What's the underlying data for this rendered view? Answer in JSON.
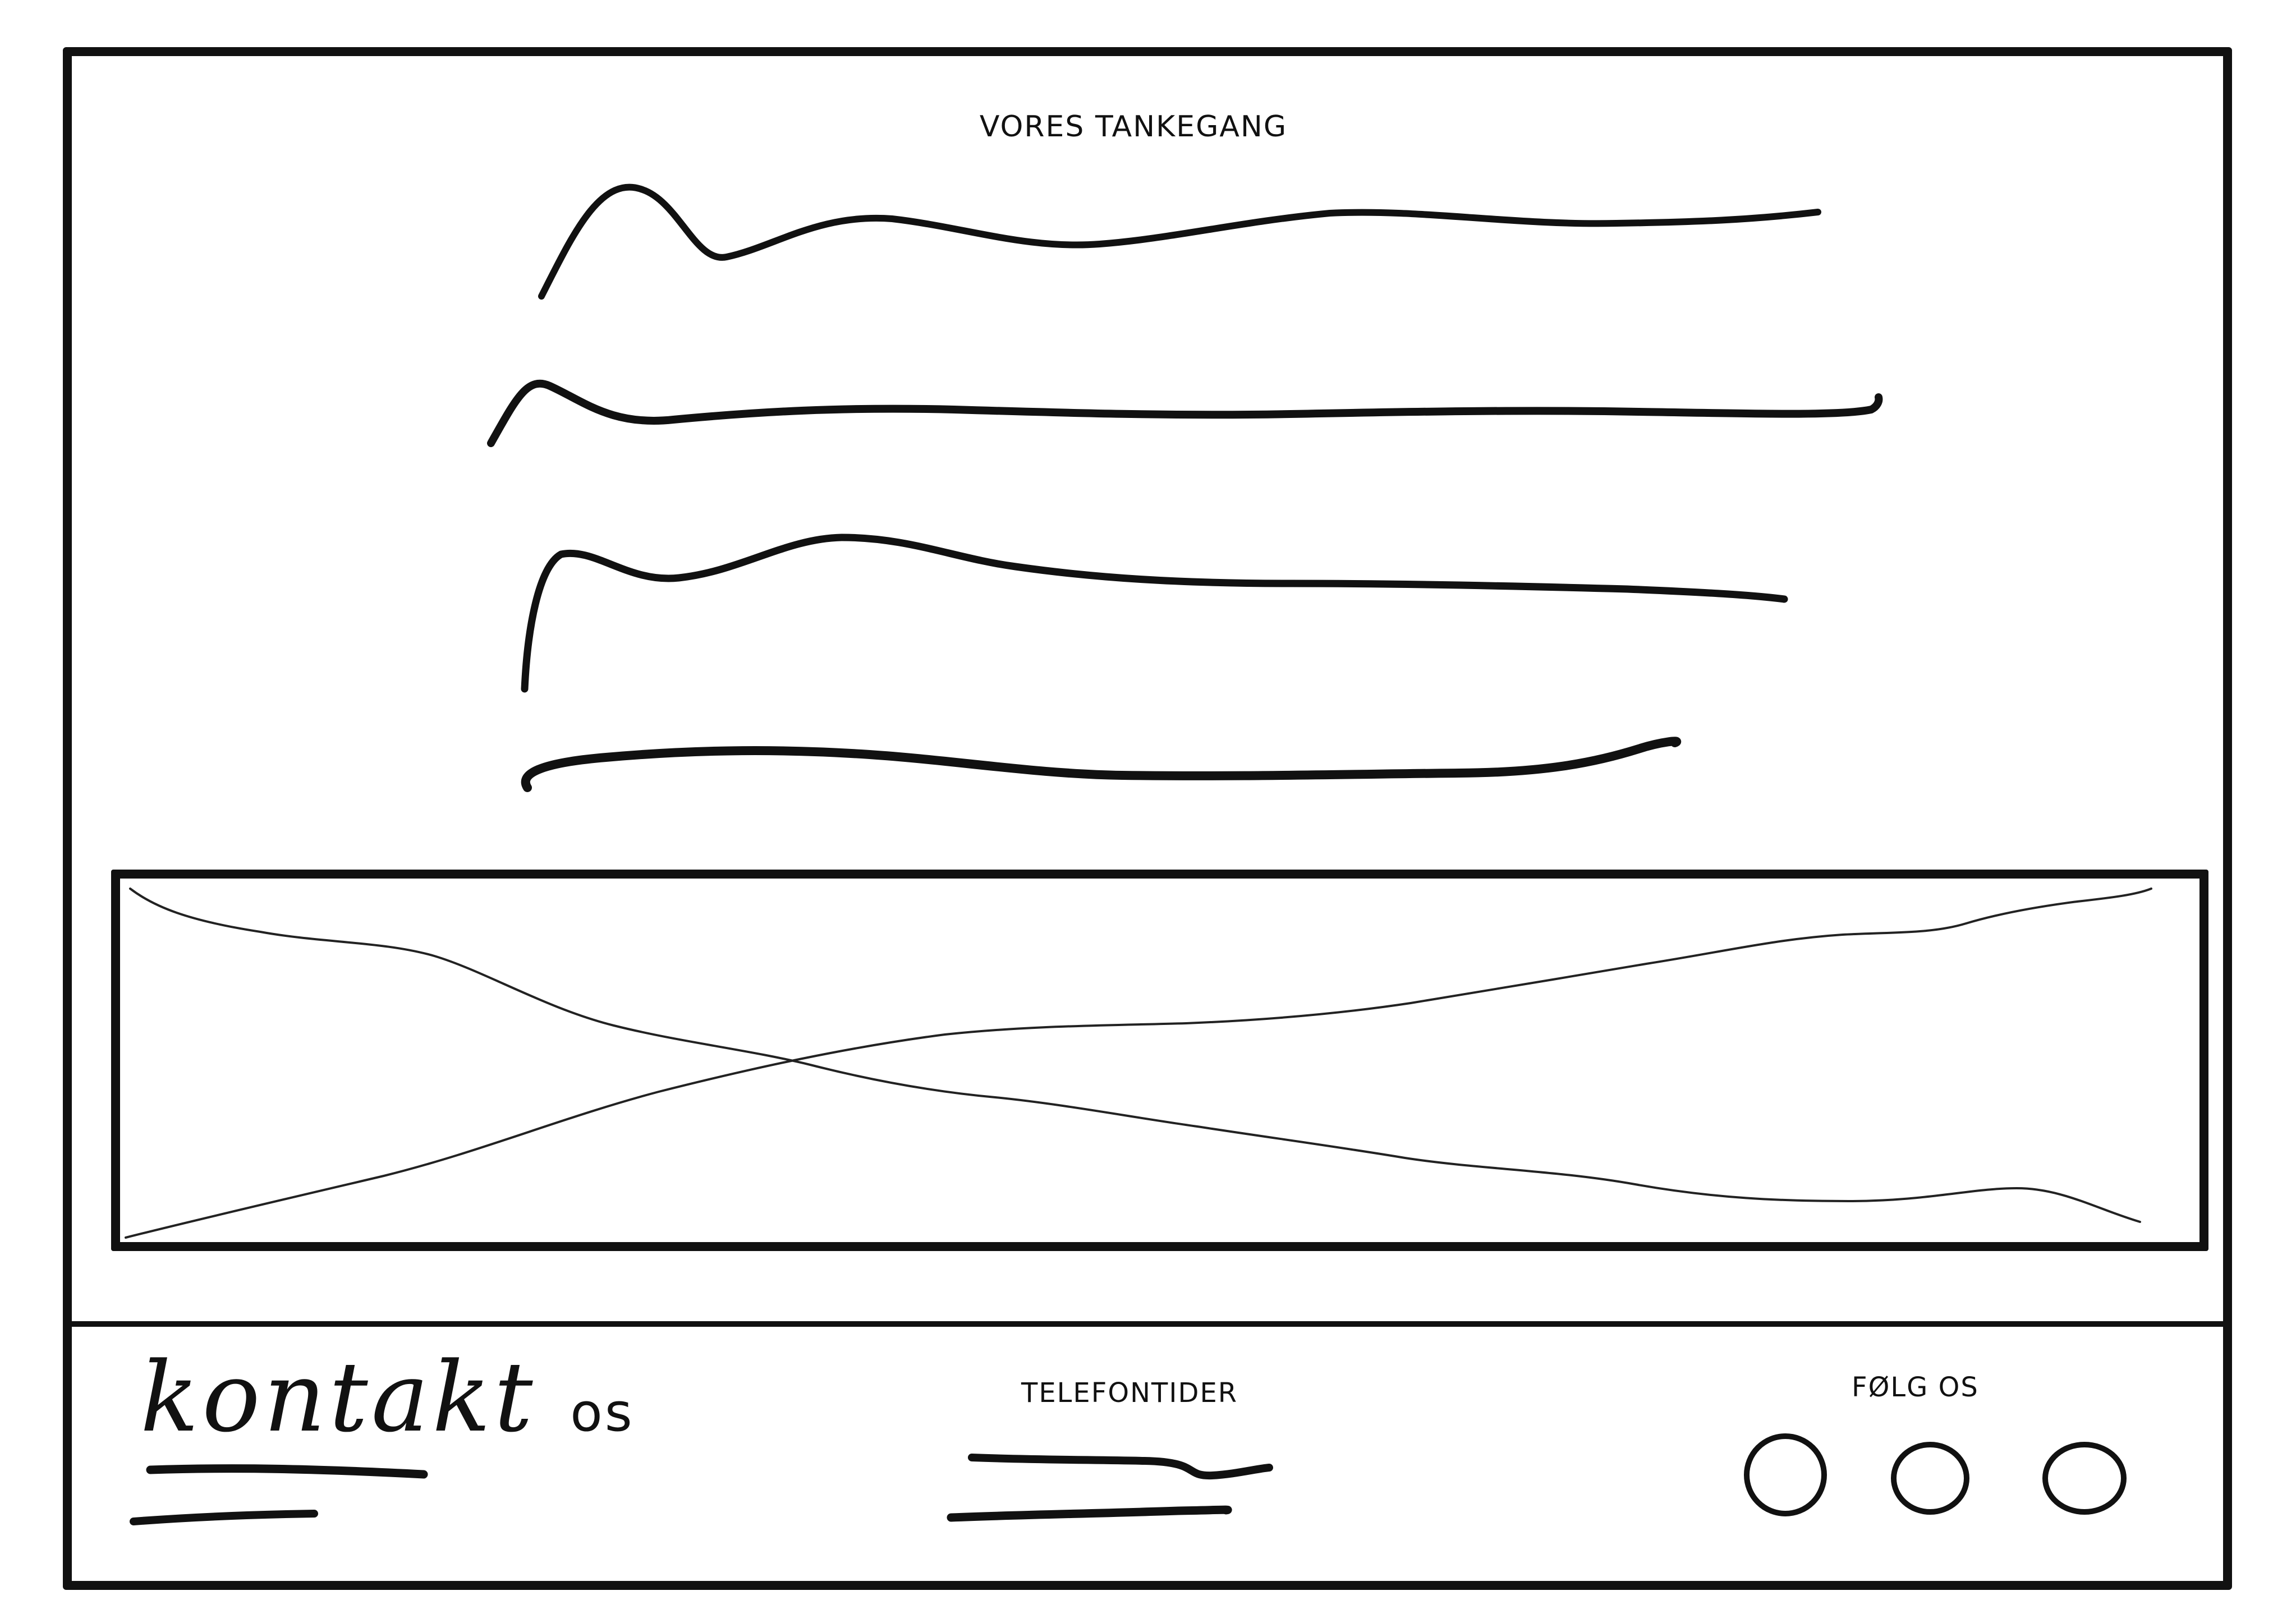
{
  "main": {
    "title": "VORES TANKEGANG"
  },
  "footer": {
    "contact": {
      "title_main": "kontakt",
      "title_small": "os"
    },
    "phone_hours": {
      "title": "TELEFONTIDER"
    },
    "follow": {
      "title": "FØLG OS",
      "icons": [
        "social-icon",
        "social-icon",
        "social-icon"
      ]
    }
  },
  "colors": {
    "ink": "#111111",
    "paper": "#ffffff"
  }
}
